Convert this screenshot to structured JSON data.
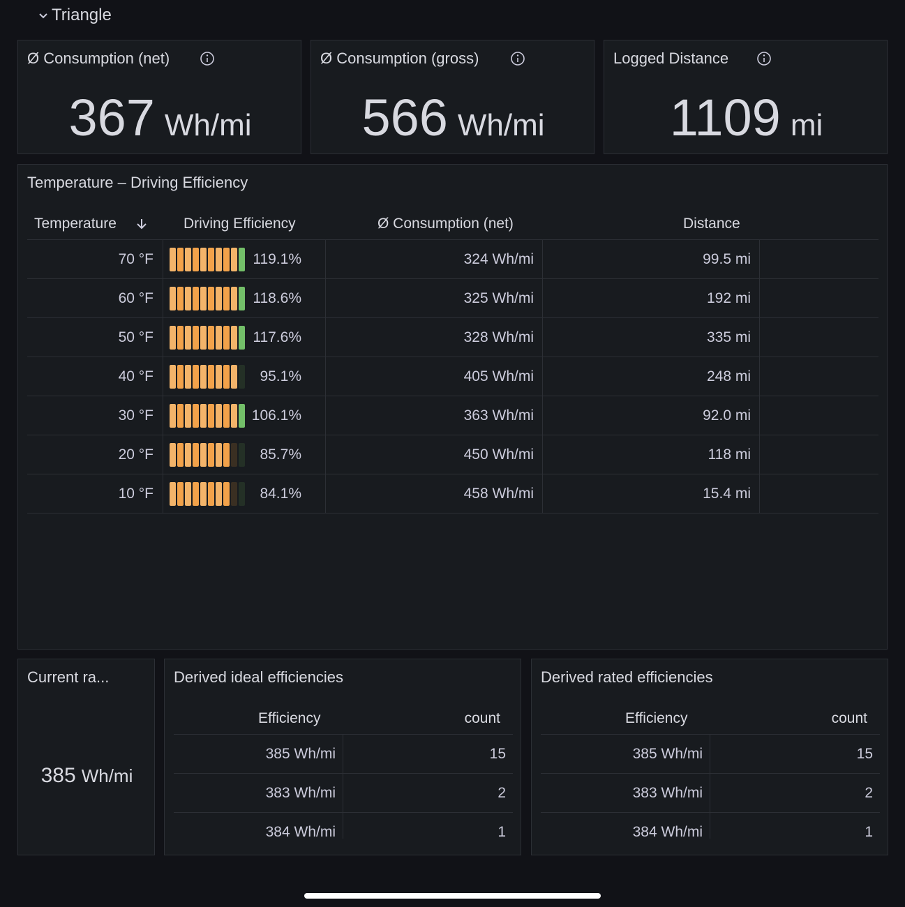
{
  "section": "Triangle",
  "stats": [
    {
      "title": "Ø Consumption (net)",
      "value": "367",
      "unit": "Wh/mi"
    },
    {
      "title": "Ø Consumption (gross)",
      "value": "566",
      "unit": "Wh/mi"
    },
    {
      "title": "Logged Distance",
      "value": "1109",
      "unit": "mi"
    }
  ],
  "efficiency_table": {
    "title": "Temperature – Driving Efficiency",
    "columns": [
      "Temperature",
      "Driving Efficiency",
      "Ø Consumption (net)",
      "Distance"
    ],
    "rows": [
      {
        "temperature": "70 °F",
        "efficiency": {
          "value": 119.1,
          "label": "119.1%"
        },
        "consumption": "324 Wh/mi",
        "distance": "99.5 mi"
      },
      {
        "temperature": "60 °F",
        "efficiency": {
          "value": 118.6,
          "label": "118.6%"
        },
        "consumption": "325 Wh/mi",
        "distance": "192 mi"
      },
      {
        "temperature": "50 °F",
        "efficiency": {
          "value": 117.6,
          "label": "117.6%"
        },
        "consumption": "328 Wh/mi",
        "distance": "335 mi"
      },
      {
        "temperature": "40 °F",
        "efficiency": {
          "value": 95.1,
          "label": "95.1%"
        },
        "consumption": "405 Wh/mi",
        "distance": "248 mi"
      },
      {
        "temperature": "30 °F",
        "efficiency": {
          "value": 106.1,
          "label": "106.1%"
        },
        "consumption": "363 Wh/mi",
        "distance": "92.0 mi"
      },
      {
        "temperature": "20 °F",
        "efficiency": {
          "value": 85.7,
          "label": "85.7%"
        },
        "consumption": "450 Wh/mi",
        "distance": "118 mi"
      },
      {
        "temperature": "10 °F",
        "efficiency": {
          "value": 84.1,
          "label": "84.1%"
        },
        "consumption": "458 Wh/mi",
        "distance": "15.4 mi"
      }
    ]
  },
  "current_rated": {
    "title": "Current ra...",
    "value": "385",
    "unit": "Wh/mi"
  },
  "ideal": {
    "title": "Derived ideal efficiencies",
    "columns": [
      "Efficiency",
      "count"
    ],
    "rows": [
      [
        "385 Wh/mi",
        15
      ],
      [
        "383 Wh/mi",
        2
      ],
      [
        "384 Wh/mi",
        1
      ]
    ]
  },
  "rated": {
    "title": "Derived rated efficiencies",
    "columns": [
      "Efficiency",
      "count"
    ],
    "rows": [
      [
        "385 Wh/mi",
        15
      ],
      [
        "383 Wh/mi",
        2
      ],
      [
        "384 Wh/mi",
        1
      ]
    ]
  }
}
